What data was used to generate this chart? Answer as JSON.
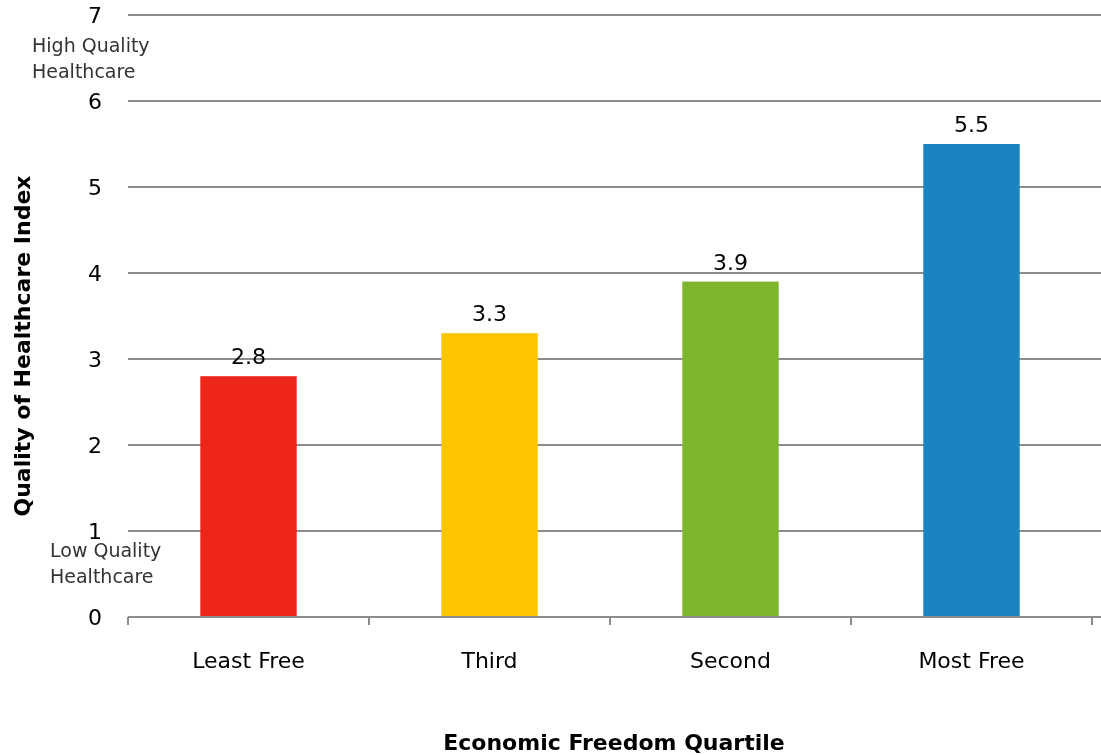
{
  "chart_data": {
    "type": "bar",
    "xlabel": "Economic Freedom Quartile",
    "ylabel": "Quality of Healthcare Index",
    "categories": [
      "Least Free",
      "Third",
      "Second",
      "Most Free"
    ],
    "values": [
      2.8,
      3.3,
      3.9,
      5.5
    ],
    "colors": [
      "#ee2519",
      "#fdc400",
      "#7db52c",
      "#1a84c1"
    ],
    "ylim": [
      0,
      7
    ],
    "yticks": [
      0,
      1,
      2,
      3,
      4,
      5,
      6,
      7
    ],
    "grid": "y",
    "data_labels": true,
    "annotations": [
      "High Quality\nHealthcare",
      "Low Quality\nHealthcare"
    ]
  }
}
